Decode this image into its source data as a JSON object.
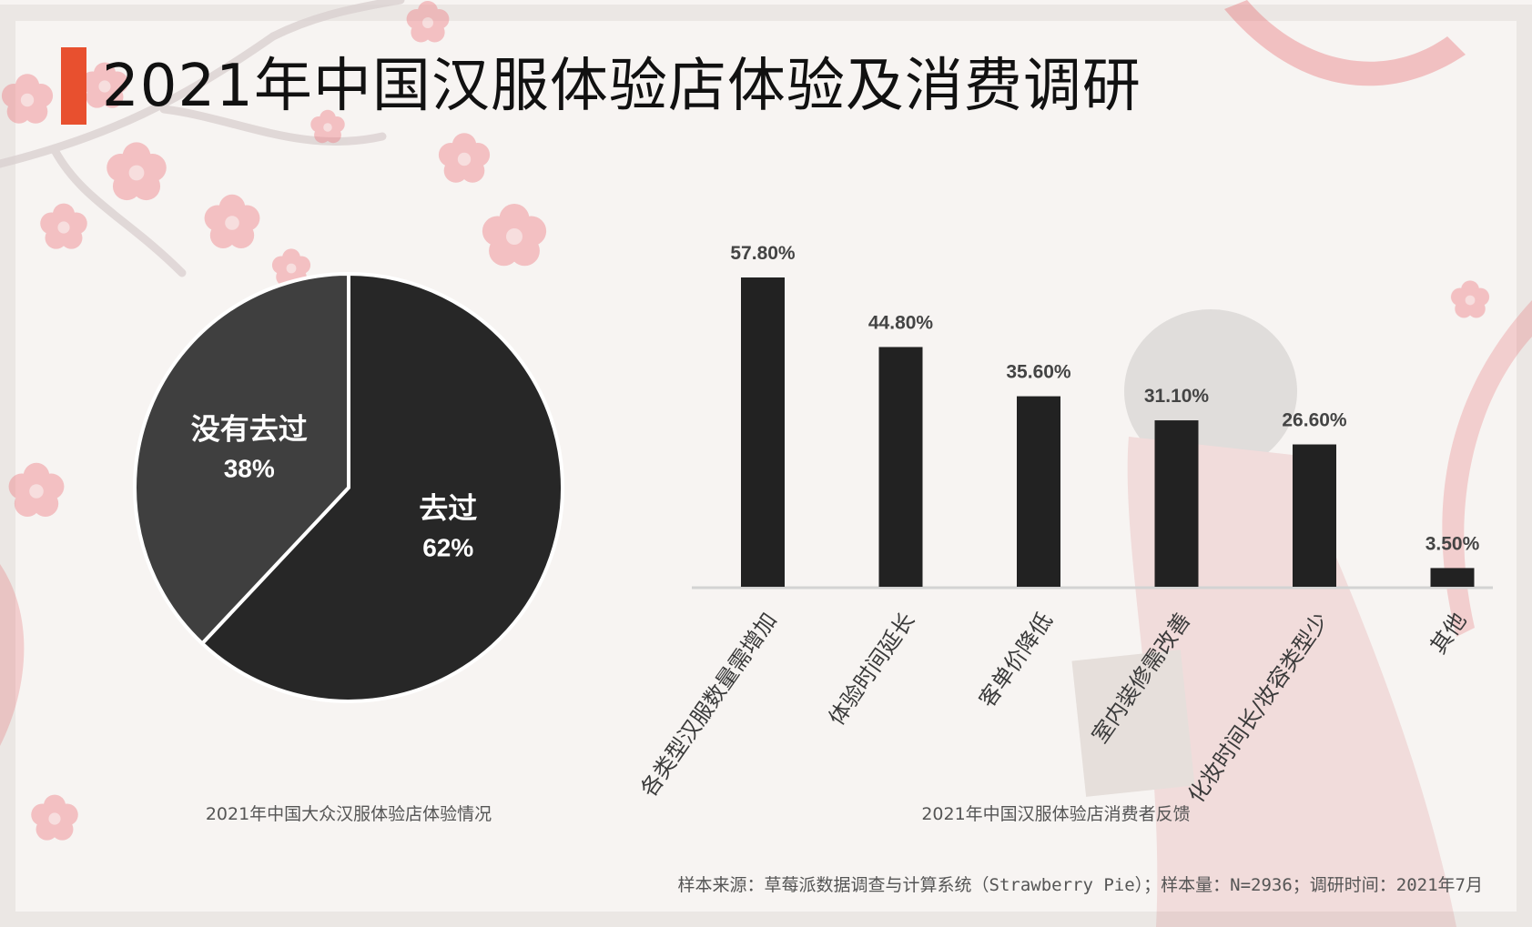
{
  "page": {
    "title": "2021年中国汉服体验店体验及消费调研",
    "source_note": "样本来源：草莓派数据调查与计算系统（Strawberry Pie）；样本量：N=2936；调研时间：2021年7月"
  },
  "colors": {
    "accent": "#e8502f",
    "pie_visited": "#272727",
    "pie_not_visited": "#3f3f3f",
    "bar": "#222222",
    "blossom": "#e8737b"
  },
  "chart_data": [
    {
      "type": "pie",
      "title": "2021年中国大众汉服体验店体验情况",
      "slices": [
        {
          "label": "去过",
          "value": 62,
          "value_label": "62%"
        },
        {
          "label": "没有去过",
          "value": 38,
          "value_label": "38%"
        }
      ]
    },
    {
      "type": "bar",
      "title": "2021年中国汉服体验店消费者反馈",
      "categories": [
        "各类型汉服数量需增加",
        "体验时间延长",
        "客单价降低",
        "室内装修需改善",
        "化妆时间长/妆容类型少",
        "其他"
      ],
      "values": [
        57.8,
        44.8,
        35.6,
        31.1,
        26.6,
        3.5
      ],
      "value_labels": [
        "57.80%",
        "44.80%",
        "35.60%",
        "31.10%",
        "26.60%",
        "3.50%"
      ],
      "ylim": [
        0,
        57.8
      ],
      "grid": false
    }
  ]
}
